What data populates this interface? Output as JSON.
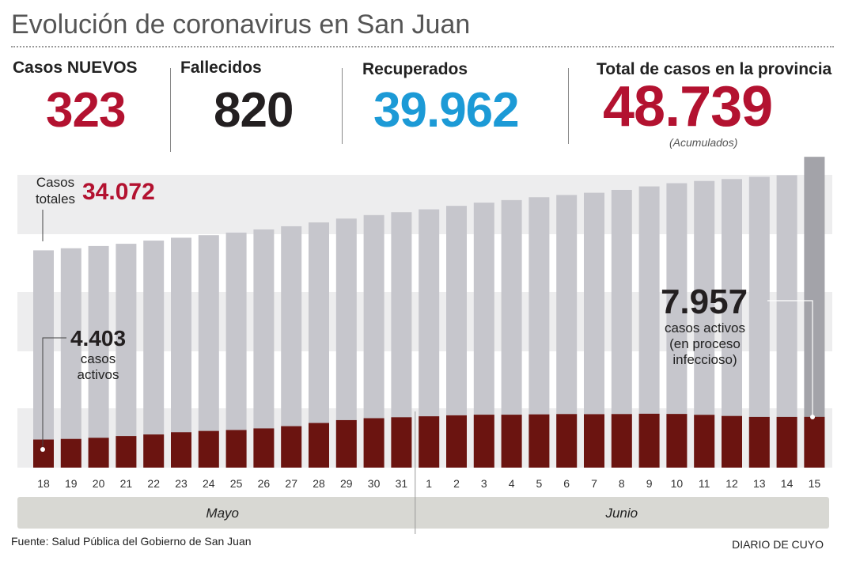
{
  "header": {
    "title": "Evolución de coronavirus en San Juan"
  },
  "stats": {
    "nuevos": {
      "label": "Casos NUEVOS",
      "value": "323"
    },
    "fallecidos": {
      "label": "Fallecidos",
      "value": "820"
    },
    "recuperados": {
      "label": "Recuperados",
      "value": "39.962"
    },
    "total": {
      "label": "Total de casos en la provincia",
      "value": "48.739",
      "note": "(Acumulados)"
    }
  },
  "annotations": {
    "casos_totales_label_1": "Casos",
    "casos_totales_label_2": "totales",
    "casos_totales_value": "34.072",
    "activos_start_value": "4.403",
    "activos_start_text_1": "casos",
    "activos_start_text_2": "activos",
    "activos_end_value": "7.957",
    "activos_end_text_1": "casos activos",
    "activos_end_text_2": "(en proceso",
    "activos_end_text_3": "infeccioso)"
  },
  "footer": {
    "source": "Fuente: Salud Pública del Gobierno de San Juan",
    "brand": "DIARIO DE CUYO"
  },
  "colors": {
    "total_bar": "#c6c6cc",
    "total_bar_last": "#a3a3a9",
    "active_bar": "#6b1410",
    "accent_red": "#b31230",
    "accent_blue": "#1c9ad6",
    "dark_text": "#231f20",
    "band": "#ededee",
    "month_band": "#d8d8d3"
  },
  "chart_data": {
    "type": "bar",
    "categories": [
      "18",
      "19",
      "20",
      "21",
      "22",
      "23",
      "24",
      "25",
      "26",
      "27",
      "28",
      "29",
      "30",
      "31",
      "1",
      "2",
      "3",
      "4",
      "5",
      "6",
      "7",
      "8",
      "9",
      "10",
      "11",
      "12",
      "13",
      "14",
      "15"
    ],
    "months": [
      {
        "name": "Mayo",
        "from": "18",
        "to": "31"
      },
      {
        "name": "Junio",
        "from": "1",
        "to": "15"
      }
    ],
    "series": [
      {
        "name": "Casos totales",
        "values": [
          34072,
          34400,
          34750,
          35100,
          35600,
          36050,
          36450,
          36850,
          37350,
          37850,
          38450,
          39050,
          39600,
          40050,
          40500,
          41050,
          41550,
          41950,
          42400,
          42750,
          43100,
          43550,
          44100,
          44600,
          44950,
          45250,
          45600,
          45850,
          48739
        ]
      },
      {
        "name": "casos activos",
        "values": [
          4403,
          4500,
          4680,
          4950,
          5200,
          5550,
          5750,
          5900,
          6150,
          6500,
          7000,
          7450,
          7750,
          7900,
          8050,
          8200,
          8300,
          8300,
          8350,
          8400,
          8380,
          8400,
          8450,
          8420,
          8280,
          8100,
          7950,
          7950,
          7957
        ]
      }
    ],
    "ylim": [
      0,
      50000
    ]
  }
}
